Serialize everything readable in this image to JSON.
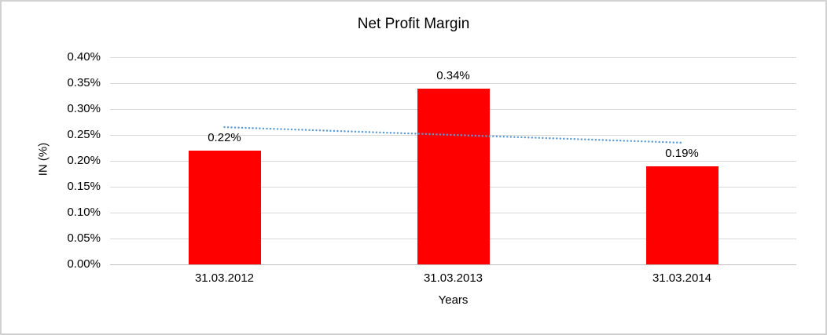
{
  "window": {
    "background_color": "#ffffff",
    "frame_border_color": "#d2d2d2"
  },
  "chart_data": {
    "type": "bar",
    "title": "Net Profit Margin",
    "xlabel": "Years",
    "ylabel": "IN (%)",
    "categories": [
      "31.03.2012",
      "31.03.2013",
      "31.03.2014"
    ],
    "values": [
      0.22,
      0.34,
      0.19
    ],
    "data_labels": [
      "0.22%",
      "0.34%",
      "0.19%"
    ],
    "ylim": [
      0,
      0.4
    ],
    "y_ticks": [
      "0.40%",
      "0.35%",
      "0.30%",
      "0.25%",
      "0.20%",
      "0.15%",
      "0.10%",
      "0.05%",
      "0.00%"
    ],
    "y_tick_values": [
      0.4,
      0.35,
      0.3,
      0.25,
      0.2,
      0.15,
      0.1,
      0.05,
      0.0
    ],
    "grid": true,
    "legend": "none",
    "bar_color": "#ff0000",
    "gridline_color": "#d9d9d9",
    "axis_line_color": "#bfbfbf",
    "text_color": "#000000",
    "trendline": {
      "type": "linear",
      "style": "dotted",
      "color": "#5b9bd5",
      "start_value": 0.265,
      "end_value": 0.235
    }
  }
}
